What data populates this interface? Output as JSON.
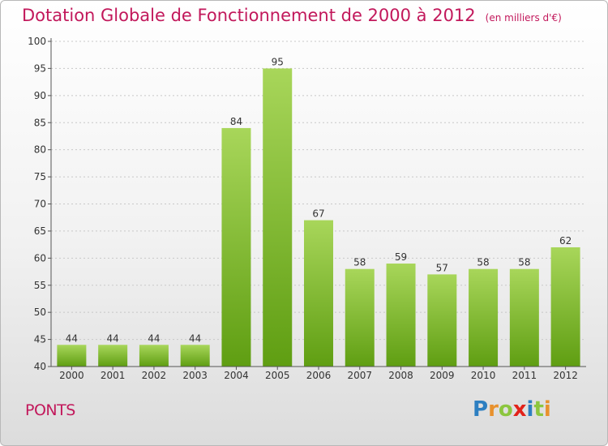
{
  "header": {
    "title": "Dotation Globale de Fonctionnement de 2000 à 2012",
    "unit": "(en milliers d'€)"
  },
  "footer": {
    "commune": "PONTS",
    "logo": {
      "letters": [
        "P",
        "r",
        "o",
        "x",
        "i",
        "t",
        "i"
      ],
      "colors": [
        "#2d7fc1",
        "#e8912d",
        "#8cc63f",
        "#e2231a",
        "#2d7fc1",
        "#8cc63f",
        "#e8912d"
      ]
    }
  },
  "colors": {
    "title": "#c2185b",
    "bar_light": "#a8d65a",
    "bar_dark": "#5f9e12",
    "axis": "#555555",
    "grid": "#c8c8c8"
  },
  "chart_data": {
    "type": "bar",
    "categories": [
      "2000",
      "2001",
      "2002",
      "2003",
      "2004",
      "2005",
      "2006",
      "2007",
      "2008",
      "2009",
      "2010",
      "2011",
      "2012"
    ],
    "values": [
      44,
      44,
      44,
      44,
      84,
      95,
      67,
      58,
      59,
      57,
      58,
      58,
      62
    ],
    "ylim": [
      40,
      100
    ],
    "yticks": [
      40,
      45,
      50,
      55,
      60,
      65,
      70,
      75,
      80,
      85,
      90,
      95,
      100
    ],
    "grid": true,
    "data_labels": true
  }
}
